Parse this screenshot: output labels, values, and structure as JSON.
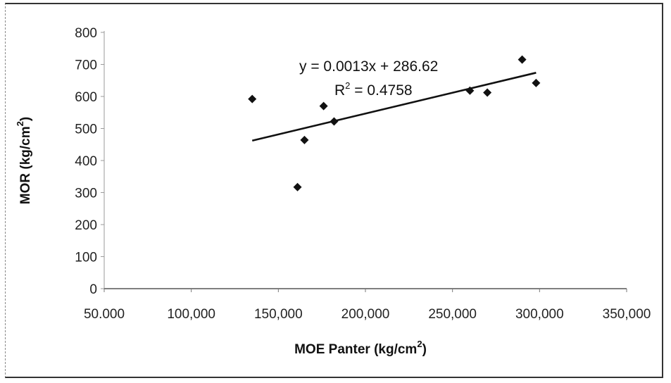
{
  "chart_data": {
    "type": "scatter",
    "x_title": {
      "base": "MOE Panter (kg/cm",
      "sup": "2",
      "tail": ")"
    },
    "y_title": {
      "base": "MOR (kg/cm",
      "sup": "2",
      "tail": ")"
    },
    "xlim": [
      50000,
      350000
    ],
    "ylim": [
      0,
      800
    ],
    "x_ticks": [
      {
        "value": 50000,
        "label": "50.000"
      },
      {
        "value": 100000,
        "label": "100,000"
      },
      {
        "value": 150000,
        "label": "150,000"
      },
      {
        "value": 200000,
        "label": "200,000"
      },
      {
        "value": 250000,
        "label": "250,000"
      },
      {
        "value": 300000,
        "label": "300,000"
      },
      {
        "value": 350000,
        "label": "350,000"
      }
    ],
    "y_ticks": [
      {
        "value": 0,
        "label": "0"
      },
      {
        "value": 100,
        "label": "100"
      },
      {
        "value": 200,
        "label": "200"
      },
      {
        "value": 300,
        "label": "300"
      },
      {
        "value": 400,
        "label": "400"
      },
      {
        "value": 500,
        "label": "500"
      },
      {
        "value": 600,
        "label": "600"
      },
      {
        "value": 700,
        "label": "700"
      },
      {
        "value": 800,
        "label": "800"
      }
    ],
    "points": [
      {
        "x": 135000,
        "y": 592
      },
      {
        "x": 161000,
        "y": 317
      },
      {
        "x": 165000,
        "y": 464
      },
      {
        "x": 176000,
        "y": 570
      },
      {
        "x": 182000,
        "y": 522
      },
      {
        "x": 260000,
        "y": 618
      },
      {
        "x": 270000,
        "y": 612
      },
      {
        "x": 290000,
        "y": 715
      },
      {
        "x": 298000,
        "y": 642
      }
    ],
    "trendline": {
      "slope": 0.0013,
      "intercept": 286.62,
      "x_from": 135000,
      "x_to": 298000
    },
    "equation": "y = 0.0013x + 286.62",
    "r2": {
      "base": "R",
      "sup": "2",
      "tail": " = 0.4758"
    },
    "grid": false,
    "legend": false,
    "marker": "diamond",
    "color": "#111111"
  }
}
